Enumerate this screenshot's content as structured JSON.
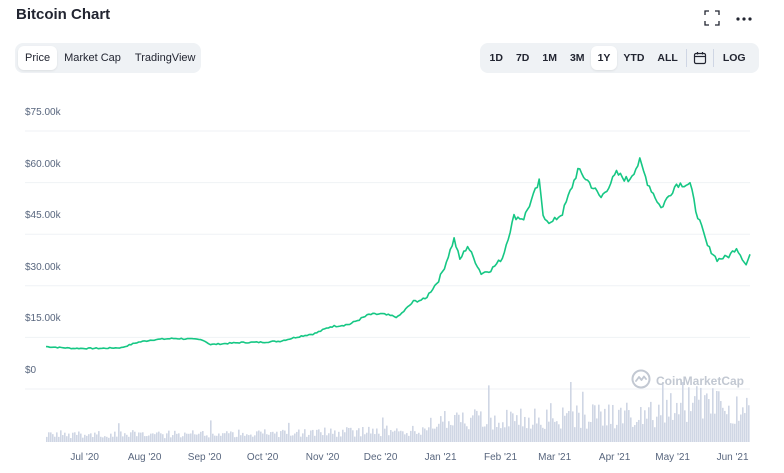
{
  "header": {
    "title": "Bitcoin Chart"
  },
  "view_tabs": [
    "Price",
    "Market Cap",
    "TradingView"
  ],
  "active_view": "Price",
  "range_tabs": [
    "1D",
    "7D",
    "1M",
    "3M",
    "1Y",
    "YTD",
    "ALL"
  ],
  "active_range": "1Y",
  "log_label": "LOG",
  "icons": {
    "expand": "expand-icon",
    "more": "more-icon",
    "calendar": "calendar-icon",
    "watermark": "coinmarketcap-logo-icon"
  },
  "colors": {
    "line": "#16c784",
    "volume": "#cfd6e4",
    "grid": "#eff2f5"
  },
  "watermark": "CoinMarketCap",
  "chart_data": {
    "type": "line",
    "title": "Bitcoin Chart",
    "y_tick_labels": [
      "$75.00k",
      "$60.00k",
      "$45.00k",
      "$30.00k",
      "$15.00k",
      "$0"
    ],
    "y_ticks": [
      75000,
      60000,
      45000,
      30000,
      15000,
      0
    ],
    "ylim": [
      0,
      75000
    ],
    "x_tick_labels": [
      "Jul '20",
      "Aug '20",
      "Sep '20",
      "Oct '20",
      "Nov '20",
      "Dec '20",
      "Jan '21",
      "Feb '21",
      "Mar '21",
      "Apr '21",
      "May '21",
      "Jun '21"
    ],
    "x_ticks": [
      "2020-07-01",
      "2020-08-01",
      "2020-09-01",
      "2020-10-01",
      "2020-11-01",
      "2020-12-01",
      "2021-01-01",
      "2021-02-01",
      "2021-03-01",
      "2021-04-01",
      "2021-05-01",
      "2021-06-01"
    ],
    "xlim": [
      "2020-06-11",
      "2021-06-10"
    ],
    "grid": true,
    "series": [
      {
        "x": [
          "2020-06-11",
          "2020-06-25",
          "2020-07-10",
          "2020-07-20",
          "2020-07-28",
          "2020-08-05",
          "2020-08-17",
          "2020-08-31",
          "2020-09-04",
          "2020-09-20",
          "2020-10-01",
          "2020-10-10",
          "2020-10-21",
          "2020-10-28",
          "2020-11-05",
          "2020-11-15",
          "2020-11-25",
          "2020-12-01",
          "2020-12-10",
          "2020-12-18",
          "2020-12-24",
          "2020-12-31",
          "2021-01-03",
          "2021-01-08",
          "2021-01-11",
          "2021-01-15",
          "2021-01-22",
          "2021-01-27",
          "2021-02-02",
          "2021-02-08",
          "2021-02-13",
          "2021-02-21",
          "2021-02-23",
          "2021-02-27",
          "2021-03-05",
          "2021-03-13",
          "2021-03-18",
          "2021-03-25",
          "2021-04-02",
          "2021-04-08",
          "2021-04-14",
          "2021-04-18",
          "2021-04-25",
          "2021-05-03",
          "2021-05-10",
          "2021-05-13",
          "2021-05-19",
          "2021-05-24",
          "2021-05-30",
          "2021-06-03",
          "2021-06-08",
          "2021-06-10"
        ],
        "y": [
          9700,
          9200,
          9200,
          9400,
          10900,
          11700,
          12100,
          11700,
          10300,
          10900,
          11000,
          11300,
          12800,
          13500,
          15500,
          16200,
          19000,
          19200,
          18300,
          22800,
          23500,
          29000,
          32800,
          41000,
          35000,
          39000,
          31000,
          32000,
          35500,
          47500,
          47000,
          57500,
          48000,
          45500,
          48500,
          61000,
          58000,
          53000,
          60000,
          58000,
          63500,
          57500,
          50000,
          57000,
          57000,
          49500,
          39000,
          35000,
          36000,
          38500,
          33500,
          36500
        ]
      }
    ],
    "volume_shown": true
  }
}
